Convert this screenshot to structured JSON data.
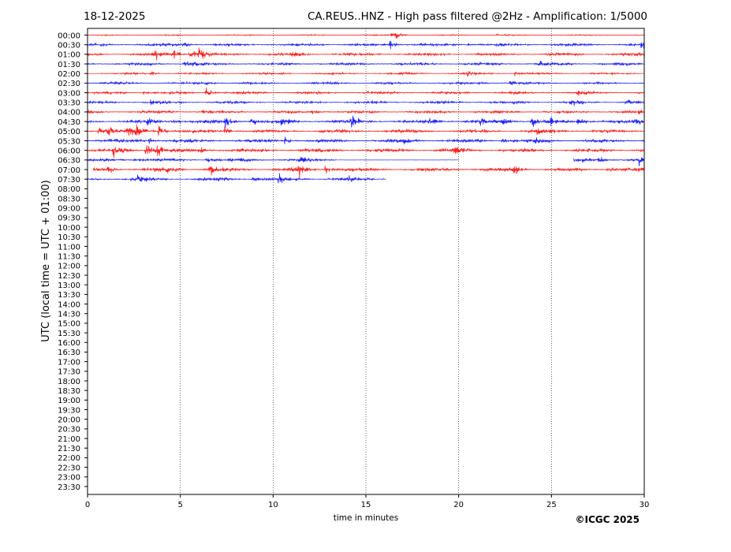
{
  "chart_data": {
    "type": "line",
    "date": "18-12-2025",
    "title": "CA.REUS..HNZ - High pass filtered @2Hz - Amplification: 1/5000",
    "xlabel": "time in minutes",
    "ylabel": "UTC (local time = UTC + 01:00)",
    "copyright": "©ICGC 2025",
    "xlim": [
      0,
      30
    ],
    "xticks": [
      "0",
      "5",
      "10",
      "15",
      "20",
      "25",
      "30"
    ],
    "xtick_values": [
      0,
      5,
      10,
      15,
      20,
      25,
      30
    ],
    "grid": "vertical dotted",
    "colors": {
      "odd": "#ff0000",
      "even": "#0000ff"
    },
    "row_labels": [
      "00:00",
      "00:30",
      "01:00",
      "01:30",
      "02:00",
      "02:30",
      "03:00",
      "03:30",
      "04:00",
      "04:30",
      "05:00",
      "05:30",
      "06:00",
      "06:30",
      "07:00",
      "07:30",
      "08:00",
      "08:30",
      "09:00",
      "09:30",
      "10:00",
      "10:30",
      "11:00",
      "11:30",
      "12:00",
      "12:30",
      "13:00",
      "13:30",
      "14:00",
      "14:30",
      "15:00",
      "15:30",
      "16:00",
      "16:30",
      "17:00",
      "17:30",
      "18:00",
      "18:30",
      "19:00",
      "19:30",
      "20:00",
      "20:30",
      "21:00",
      "21:30",
      "22:00",
      "22:30",
      "23:00",
      "23:30"
    ],
    "series": [
      {
        "name": "00:00",
        "noise": 0.6,
        "segments": [
          [
            0,
            30
          ]
        ],
        "events": [
          [
            16.4,
            3
          ],
          [
            16.6,
            2.5
          ],
          [
            22,
            1
          ]
        ]
      },
      {
        "name": "00:30",
        "noise": 1.3,
        "segments": [
          [
            0,
            30
          ]
        ],
        "events": [
          [
            5.1,
            3
          ],
          [
            16.3,
            5
          ],
          [
            29.8,
            3
          ],
          [
            20.5,
            2
          ]
        ]
      },
      {
        "name": "01:00",
        "noise": 1.4,
        "segments": [
          [
            0,
            30
          ]
        ],
        "events": [
          [
            3.6,
            5
          ],
          [
            4.5,
            6
          ],
          [
            5.5,
            5
          ],
          [
            6.0,
            8
          ],
          [
            11,
            2
          ]
        ]
      },
      {
        "name": "01:30",
        "noise": 1.3,
        "segments": [
          [
            0,
            30
          ]
        ],
        "events": [
          [
            5.2,
            3
          ],
          [
            5.6,
            2.5
          ],
          [
            24.3,
            3
          ]
        ]
      },
      {
        "name": "02:00",
        "noise": 1.0,
        "segments": [
          [
            0,
            30
          ]
        ],
        "events": [
          [
            3.4,
            2
          ],
          [
            20.4,
            3
          ],
          [
            23,
            2
          ]
        ]
      },
      {
        "name": "02:30",
        "noise": 1.1,
        "segments": [
          [
            0,
            30
          ]
        ],
        "events": [
          [
            6.3,
            3
          ],
          [
            22.7,
            3
          ],
          [
            21,
            2
          ]
        ]
      },
      {
        "name": "03:00",
        "noise": 1.2,
        "segments": [
          [
            0,
            30
          ]
        ],
        "events": [
          [
            6.4,
            7
          ],
          [
            26.4,
            3
          ],
          [
            3,
            1.5
          ]
        ]
      },
      {
        "name": "03:30",
        "noise": 1.3,
        "segments": [
          [
            0,
            30
          ]
        ],
        "events": [
          [
            3.3,
            2.5
          ],
          [
            26,
            2.5
          ],
          [
            29,
            2.5
          ]
        ]
      },
      {
        "name": "04:00",
        "noise": 1.3,
        "segments": [
          [
            0,
            30
          ]
        ],
        "events": [
          [
            6.2,
            2
          ],
          [
            12.1,
            2
          ],
          [
            29.5,
            3
          ]
        ]
      },
      {
        "name": "04:30",
        "noise": 1.7,
        "segments": [
          [
            0,
            30
          ]
        ],
        "events": [
          [
            3.2,
            5
          ],
          [
            4.4,
            4
          ],
          [
            7.4,
            5
          ],
          [
            8.8,
            5
          ],
          [
            10.4,
            5
          ],
          [
            14.2,
            6
          ],
          [
            18.4,
            4
          ],
          [
            21.1,
            4
          ],
          [
            22.3,
            6
          ],
          [
            23.9,
            6
          ],
          [
            24.9,
            4
          ],
          [
            26.4,
            6
          ],
          [
            29.4,
            4
          ]
        ]
      },
      {
        "name": "05:00",
        "noise": 1.6,
        "segments": [
          [
            0,
            30
          ]
        ],
        "events": [
          [
            0.6,
            6
          ],
          [
            1.1,
            5
          ],
          [
            2.1,
            7
          ],
          [
            2.6,
            5
          ],
          [
            3.8,
            5
          ],
          [
            7.4,
            4
          ],
          [
            24.2,
            4
          ]
        ]
      },
      {
        "name": "05:30",
        "noise": 1.7,
        "segments": [
          [
            0,
            30
          ]
        ],
        "events": [
          [
            3.3,
            3
          ],
          [
            10.6,
            3
          ],
          [
            17.0,
            3
          ],
          [
            22.3,
            3
          ],
          [
            24.1,
            3
          ]
        ]
      },
      {
        "name": "06:00",
        "noise": 1.8,
        "segments": [
          [
            0,
            30
          ]
        ],
        "events": [
          [
            1.4,
            10
          ],
          [
            3.1,
            6
          ],
          [
            3.7,
            5
          ],
          [
            19.6,
            6
          ],
          [
            6,
            3
          ]
        ]
      },
      {
        "name": "06:30",
        "noise": 1.4,
        "segments": [
          [
            0,
            13.5
          ],
          [
            13.5,
            20
          ],
          [
            26.2,
            30
          ]
        ],
        "thin": [
          1
        ],
        "events": [
          [
            2.5,
            4
          ],
          [
            6.4,
            3
          ],
          [
            11.4,
            4
          ],
          [
            21.6,
            -14
          ],
          [
            25.7,
            -20
          ],
          [
            27.5,
            4
          ],
          [
            29.7,
            4
          ]
        ]
      },
      {
        "name": "07:00",
        "noise": 1.8,
        "segments": [
          [
            0.3,
            30
          ]
        ],
        "events": [
          [
            1.1,
            3
          ],
          [
            4.2,
            5
          ],
          [
            6.6,
            5
          ],
          [
            11.4,
            5
          ],
          [
            12.8,
            5
          ],
          [
            22.9,
            6
          ],
          [
            28,
            3
          ]
        ]
      },
      {
        "name": "07:30",
        "noise": 1.5,
        "segments": [
          [
            0,
            16.1
          ]
        ],
        "events": [
          [
            2.6,
            4
          ],
          [
            8.9,
            3
          ],
          [
            10.3,
            4
          ],
          [
            14,
            2
          ]
        ]
      }
    ]
  }
}
